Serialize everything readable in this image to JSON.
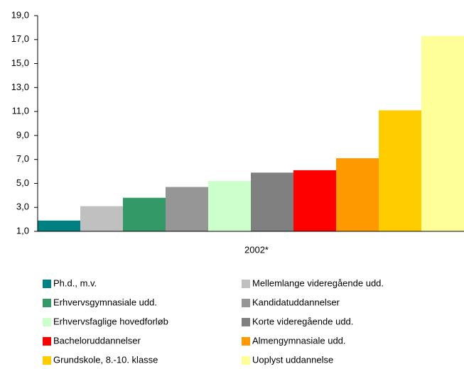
{
  "chart_data": {
    "type": "bar",
    "categories": [
      "2002*"
    ],
    "series": [
      {
        "name": "Ph.d., m.v.",
        "color": "#008080",
        "values": [
          1.9
        ]
      },
      {
        "name": "Mellemlange videregående udd.",
        "color": "#c0c0c0",
        "values": [
          3.1
        ]
      },
      {
        "name": "Erhvervsgymnasiale udd.",
        "color": "#339966",
        "values": [
          3.8
        ]
      },
      {
        "name": "Kandidatuddannelser",
        "color": "#969696",
        "values": [
          4.7
        ]
      },
      {
        "name": "Erhvervsfaglige hovedforløb",
        "color": "#ccffcc",
        "values": [
          5.2
        ]
      },
      {
        "name": "Korte videregående udd.",
        "color": "#808080",
        "values": [
          5.9
        ]
      },
      {
        "name": "Bacheloruddannelser",
        "color": "#ff0000",
        "values": [
          6.1
        ]
      },
      {
        "name": "Almengymnasiale udd.",
        "color": "#ff9900",
        "values": [
          7.1
        ]
      },
      {
        "name": "Grundskole, 8.-10. klasse",
        "color": "#ffcc00",
        "values": [
          11.1
        ]
      },
      {
        "name": "Uoplyst uddannelse",
        "color": "#ffff99",
        "values": [
          17.3
        ]
      }
    ],
    "ylim": [
      1,
      19
    ],
    "yticks": [
      {
        "value": 1,
        "label": "1,0"
      },
      {
        "value": 3,
        "label": "3,0"
      },
      {
        "value": 5,
        "label": "5,0"
      },
      {
        "value": 7,
        "label": "7,0"
      },
      {
        "value": 9,
        "label": "9,0"
      },
      {
        "value": 11,
        "label": "11,0"
      },
      {
        "value": 13,
        "label": "13,0"
      },
      {
        "value": 15,
        "label": "15,0"
      },
      {
        "value": 17,
        "label": "17,0"
      },
      {
        "value": 19,
        "label": "19,0"
      }
    ],
    "grid": false,
    "legend": "bottom"
  }
}
